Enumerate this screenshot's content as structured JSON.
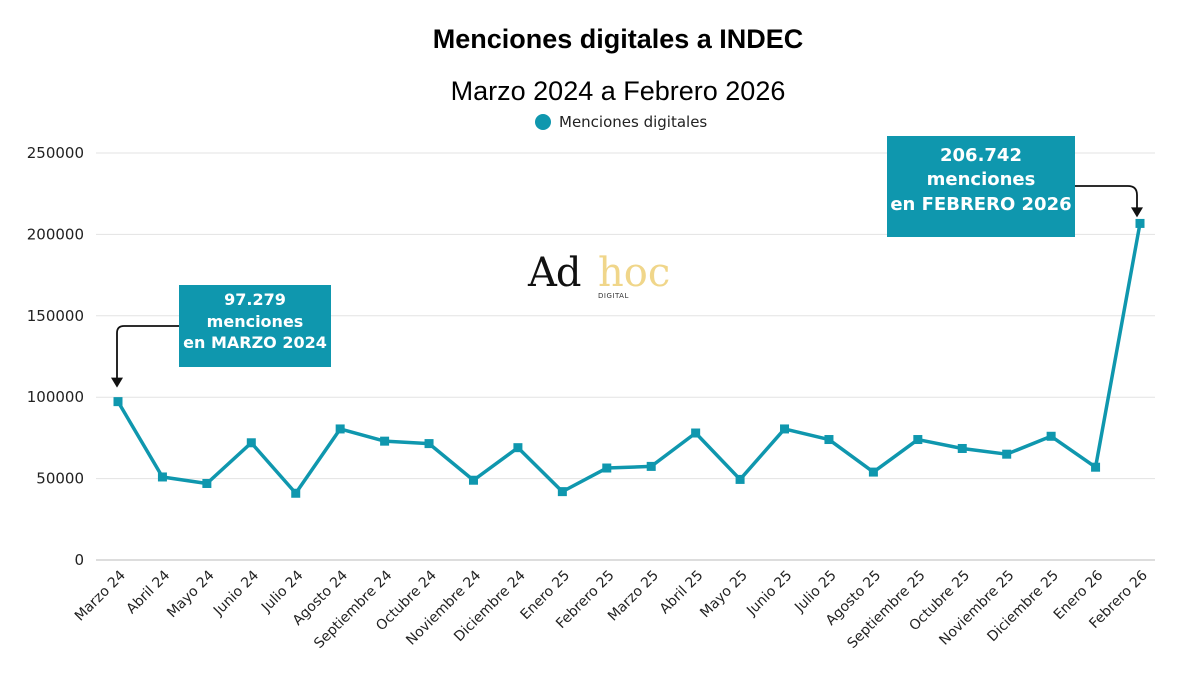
{
  "chart_data": {
    "type": "line",
    "title": "Menciones digitales a INDEC",
    "subtitle": "Marzo 2024 a Febrero 2026",
    "legend": "Menciones digitales",
    "legend_position": "top-center",
    "xlabel": "",
    "ylabel": "",
    "ylim": [
      0,
      250000
    ],
    "yticks": [
      0,
      50000,
      100000,
      150000,
      200000,
      250000
    ],
    "grid": true,
    "color": "#0f97ae",
    "categories": [
      "Marzo 24",
      "Abril 24",
      "Mayo 24",
      "Junio 24",
      "Julio 24",
      "Agosto 24",
      "Septiembre 24",
      "Octubre 24",
      "Noviembre 24",
      "Diciembre 24",
      "Enero 25",
      "Febrero 25",
      "Marzo 25",
      "Abril 25",
      "Mayo 25",
      "Junio 25",
      "Julio 25",
      "Agosto 25",
      "Septiembre 25",
      "Octubre 25",
      "Noviembre 25",
      "Diciembre 25",
      "Enero 26",
      "Febrero 26"
    ],
    "series": [
      {
        "name": "Menciones digitales",
        "values": [
          97279,
          51000,
          47000,
          72000,
          41000,
          80500,
          73000,
          71500,
          49000,
          69000,
          42000,
          56500,
          57500,
          78000,
          49500,
          80500,
          74000,
          54000,
          74000,
          68500,
          65000,
          76000,
          57000,
          206742
        ]
      }
    ],
    "annotations": [
      {
        "name": "first",
        "lines": [
          "97.279",
          "menciones",
          "en MARZO 2024"
        ]
      },
      {
        "name": "last",
        "lines": [
          "206.742",
          "menciones",
          "en FEBRERO 2026"
        ]
      }
    ]
  },
  "logo": {
    "main": "Ad",
    "accent": "hoc",
    "sub": "DIGITAL"
  }
}
